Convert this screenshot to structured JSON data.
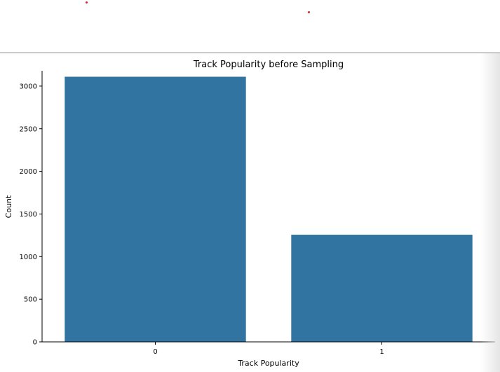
{
  "chart_data": {
    "type": "bar",
    "title": "Track Popularity before Sampling",
    "xlabel": "Track Popularity",
    "ylabel": "Count",
    "categories": [
      "0",
      "1"
    ],
    "values": [
      3110,
      1257
    ],
    "ylim": [
      0,
      3180
    ],
    "yticks": [
      0,
      500,
      1000,
      1500,
      2000,
      2500,
      3000
    ],
    "grid": false,
    "legend": "none",
    "bar_color": "#3274a1"
  },
  "colors": {
    "marker_dot": "#d62728",
    "axis": "#000000"
  }
}
